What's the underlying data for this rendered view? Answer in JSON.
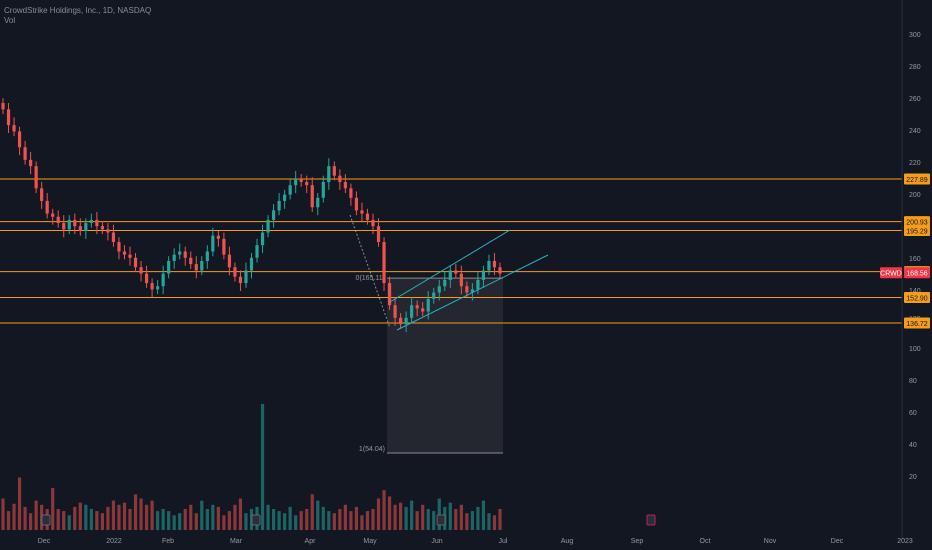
{
  "header": {
    "title": "CrowdStrike Holdings, Inc., 1D, NASDAQ",
    "subtitle": "Vol"
  },
  "colors": {
    "background": "#131722",
    "up": "#26a69a",
    "down": "#ef5350",
    "level": "#f59d1b",
    "channel": "#22b3c9",
    "price_badge": "#f23645",
    "text": "#9598a1"
  },
  "chart_data": {
    "type": "candlestick",
    "symbol": "CRWD",
    "ylim": [
      0,
      330
    ],
    "y_ticks": [
      "300",
      "280",
      "260",
      "240",
      "220",
      "200",
      "180",
      "160",
      "140",
      "120",
      "100",
      "80",
      "60",
      "40",
      "20"
    ],
    "x_ticks": [
      "Dec",
      "2022",
      "Feb",
      "Mar",
      "Apr",
      "May",
      "Jun",
      "Jul",
      "Aug",
      "Sep",
      "Oct",
      "Nov",
      "Dec",
      "2023"
    ],
    "levels": [
      227.89,
      200.93,
      195.29,
      169.27,
      152.9,
      136.72
    ],
    "level_labels": [
      "227.89",
      "200.93",
      "195.29",
      "169.27",
      "152.90",
      "136.72"
    ],
    "last_price": {
      "symbol": "CRWD",
      "value": "168.56"
    },
    "fib_labels": [
      "0(165.11)",
      "1(54.04)"
    ],
    "prices": [
      272,
      262,
      258,
      248,
      240,
      236,
      222,
      214,
      206,
      204,
      200,
      196,
      202,
      198,
      195,
      200,
      202,
      198,
      196,
      194,
      188,
      182,
      180,
      178,
      172,
      168,
      162,
      158,
      160,
      168,
      176,
      180,
      182,
      178,
      174,
      170,
      176,
      182,
      192,
      190,
      180,
      172,
      166,
      162,
      170,
      178,
      186,
      194,
      202,
      208,
      214,
      218,
      224,
      228,
      226,
      224,
      210,
      216,
      226,
      236,
      230,
      226,
      222,
      216,
      208,
      206,
      202,
      198,
      188,
      162,
      148,
      140,
      136,
      140,
      148,
      146,
      144,
      152,
      156,
      160,
      164,
      170,
      168,
      160,
      156,
      158,
      164,
      170,
      176,
      172,
      168
    ],
    "volumes": [
      30,
      18,
      25,
      50,
      22,
      16,
      28,
      24,
      20,
      40,
      20,
      18,
      14,
      22,
      26,
      24,
      20,
      18,
      16,
      22,
      28,
      24,
      26,
      20,
      34,
      30,
      24,
      28,
      18,
      20,
      18,
      14,
      16,
      20,
      24,
      16,
      28,
      20,
      24,
      22,
      14,
      18,
      24,
      30,
      16,
      20,
      22,
      120,
      24,
      20,
      18,
      16,
      22,
      14,
      18,
      20,
      34,
      28,
      22,
      18,
      16,
      20,
      24,
      18,
      22,
      14,
      18,
      20,
      30,
      38,
      32,
      24,
      26,
      22,
      28,
      18,
      24,
      20,
      18,
      30,
      22,
      26,
      20,
      24,
      16,
      18,
      22,
      28,
      16,
      14,
      20
    ]
  }
}
